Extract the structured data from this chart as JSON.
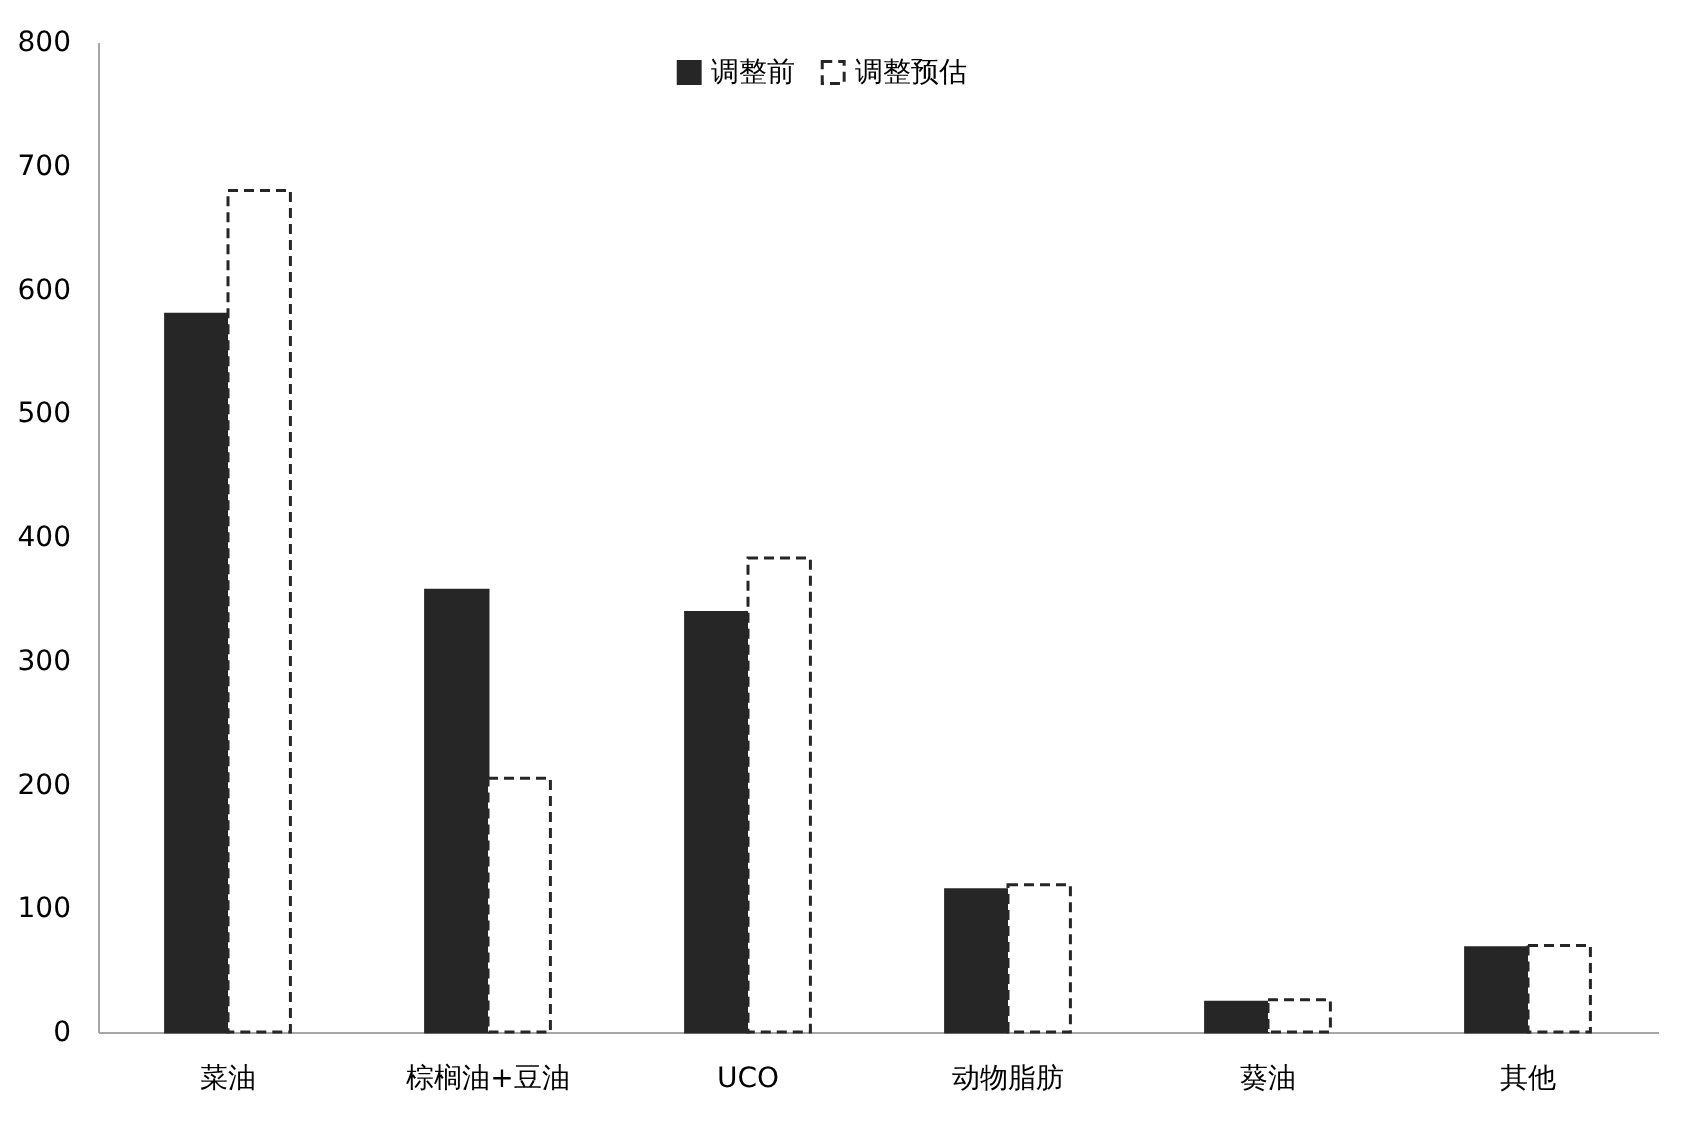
{
  "chart_data": {
    "type": "bar",
    "categories": [
      "菜油",
      "棕榈油+豆油",
      "UCO",
      "动物脂肪",
      "葵油",
      "其他"
    ],
    "series": [
      {
        "name": "调整前",
        "color": "#262626",
        "values": [
          580,
          357,
          339,
          115,
          24,
          68
        ]
      },
      {
        "name": "调整预估",
        "color": "#ffffff",
        "line_style": "dashed",
        "values": [
          680,
          205,
          383,
          119,
          26,
          70
        ]
      }
    ],
    "ylim": [
      0,
      800
    ],
    "yticks": [
      0,
      100,
      200,
      300,
      400,
      500,
      600,
      700,
      800
    ],
    "grid": false,
    "legend": "top"
  }
}
